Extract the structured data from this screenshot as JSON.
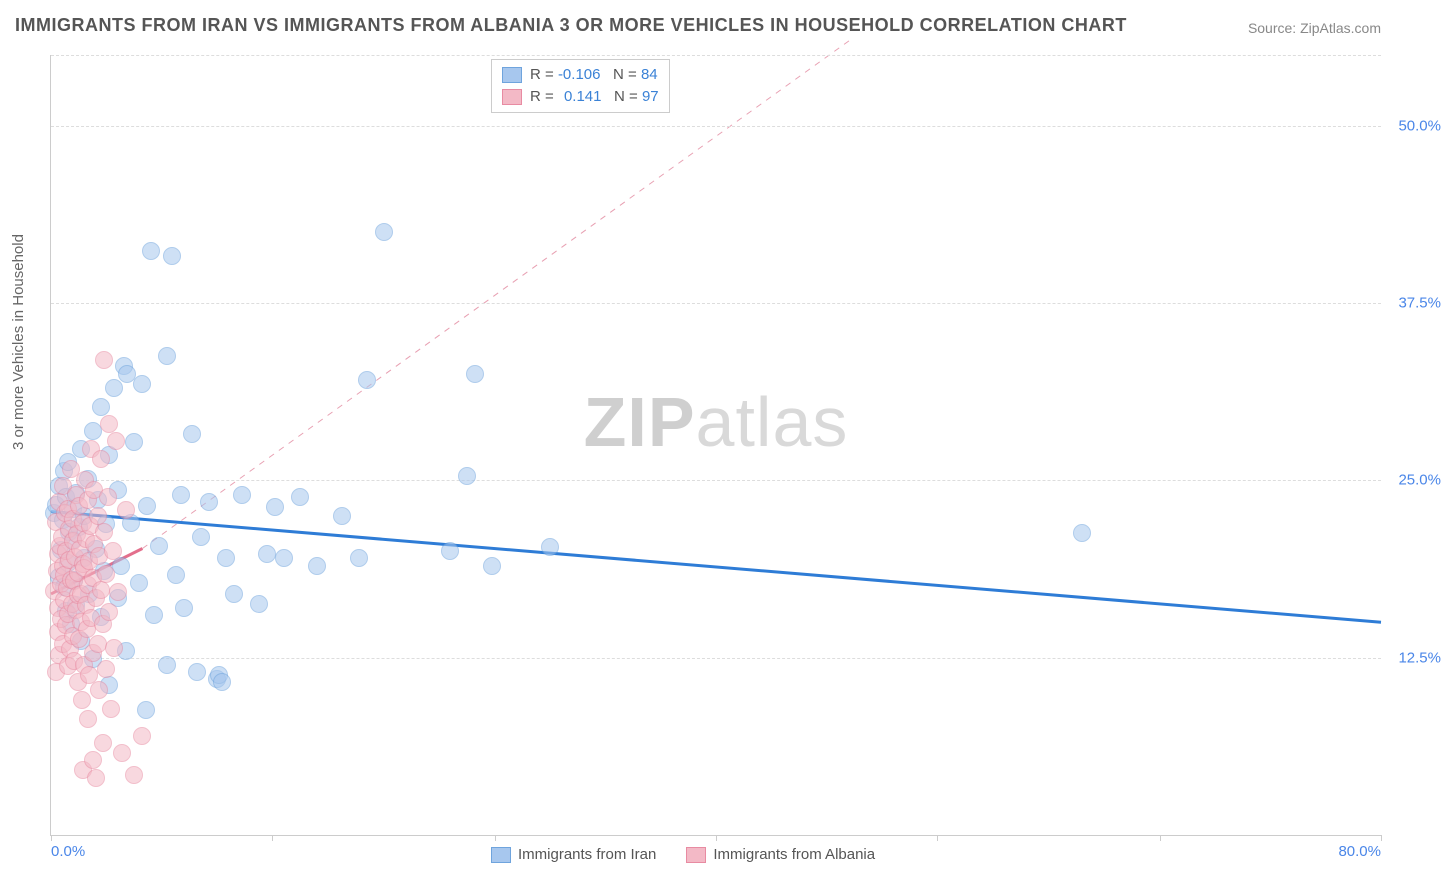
{
  "title": "IMMIGRANTS FROM IRAN VS IMMIGRANTS FROM ALBANIA 3 OR MORE VEHICLES IN HOUSEHOLD CORRELATION CHART",
  "source": "Source: ZipAtlas.com",
  "ylabel": "3 or more Vehicles in Household",
  "watermark_a": "ZIP",
  "watermark_b": "atlas",
  "chart": {
    "type": "scatter",
    "xlim": [
      0,
      80
    ],
    "ylim": [
      0,
      55
    ],
    "xtick_positions": [
      0,
      13.3,
      26.7,
      40,
      53.3,
      66.7,
      80
    ],
    "xtick_labels": [
      "0.0%",
      "",
      "",
      "",
      "",
      "",
      "80.0%"
    ],
    "ytick_positions": [
      12.5,
      25,
      37.5,
      50
    ],
    "ytick_labels": [
      "12.5%",
      "25.0%",
      "37.5%",
      "50.0%"
    ],
    "tick_color": "#4a86e8",
    "grid_color": "#dddddd",
    "background_color": "#ffffff",
    "point_radius": 8,
    "point_opacity": 0.55
  },
  "series": [
    {
      "name": "Immigrants from Iran",
      "color_fill": "#a7c7ee",
      "color_stroke": "#6fa4dd",
      "r_value": "-0.106",
      "n_value": "84",
      "trend": {
        "x1": 0,
        "y1": 22.8,
        "x2": 80,
        "y2": 15.0,
        "dashed": false,
        "width": 3,
        "color": "#2e7cd6"
      },
      "short_dashed_line": null,
      "points": [
        [
          0.2,
          22.7
        ],
        [
          0.3,
          23.3
        ],
        [
          0.5,
          18.2
        ],
        [
          0.5,
          24.6
        ],
        [
          0.6,
          20.1
        ],
        [
          0.7,
          22.2
        ],
        [
          0.8,
          25.7
        ],
        [
          0.8,
          17.5
        ],
        [
          0.9,
          23.8
        ],
        [
          0.9,
          15.8
        ],
        [
          1.0,
          19.2
        ],
        [
          1.0,
          26.3
        ],
        [
          1.1,
          21.4
        ],
        [
          1.2,
          14.9
        ],
        [
          1.3,
          20.8
        ],
        [
          1.3,
          23.0
        ],
        [
          1.4,
          18.0
        ],
        [
          1.5,
          24.1
        ],
        [
          1.5,
          16.2
        ],
        [
          1.7,
          21.7
        ],
        [
          1.8,
          27.2
        ],
        [
          1.8,
          13.7
        ],
        [
          2.0,
          19.5
        ],
        [
          2.0,
          22.5
        ],
        [
          2.2,
          25.1
        ],
        [
          2.3,
          17.0
        ],
        [
          2.5,
          12.4
        ],
        [
          2.5,
          28.5
        ],
        [
          2.7,
          20.2
        ],
        [
          2.8,
          23.6
        ],
        [
          3.0,
          15.4
        ],
        [
          3.0,
          30.2
        ],
        [
          3.2,
          18.6
        ],
        [
          3.3,
          21.9
        ],
        [
          3.5,
          26.8
        ],
        [
          3.5,
          10.6
        ],
        [
          3.8,
          31.5
        ],
        [
          4.0,
          16.7
        ],
        [
          4.0,
          24.3
        ],
        [
          4.2,
          19.0
        ],
        [
          4.4,
          33.1
        ],
        [
          4.5,
          13.0
        ],
        [
          4.6,
          32.5
        ],
        [
          4.8,
          22.0
        ],
        [
          5.0,
          27.7
        ],
        [
          5.3,
          17.8
        ],
        [
          5.5,
          31.8
        ],
        [
          5.7,
          8.8
        ],
        [
          5.8,
          23.2
        ],
        [
          6.0,
          41.2
        ],
        [
          6.2,
          15.5
        ],
        [
          6.5,
          20.4
        ],
        [
          7.0,
          12.0
        ],
        [
          7.0,
          33.8
        ],
        [
          7.3,
          40.8
        ],
        [
          7.5,
          18.3
        ],
        [
          7.8,
          24.0
        ],
        [
          8.0,
          16.0
        ],
        [
          8.5,
          28.3
        ],
        [
          8.8,
          11.5
        ],
        [
          9.0,
          21.0
        ],
        [
          9.5,
          23.5
        ],
        [
          10.0,
          11.0
        ],
        [
          10.1,
          11.3
        ],
        [
          10.3,
          10.8
        ],
        [
          10.5,
          19.5
        ],
        [
          11.0,
          17.0
        ],
        [
          11.5,
          24.0
        ],
        [
          12.5,
          16.3
        ],
        [
          13.0,
          19.8
        ],
        [
          13.5,
          23.1
        ],
        [
          14.0,
          19.5
        ],
        [
          15.0,
          23.8
        ],
        [
          16.0,
          19.0
        ],
        [
          17.5,
          22.5
        ],
        [
          18.5,
          19.5
        ],
        [
          19.0,
          32.1
        ],
        [
          20.0,
          42.5
        ],
        [
          24.0,
          20.0
        ],
        [
          25.0,
          25.3
        ],
        [
          25.5,
          32.5
        ],
        [
          26.5,
          19.0
        ],
        [
          30.0,
          20.3
        ],
        [
          62.0,
          21.3
        ]
      ]
    },
    {
      "name": "Immigrants from Albania",
      "color_fill": "#f3b9c6",
      "color_stroke": "#e88ba2",
      "r_value": "0.141",
      "n_value": "97",
      "trend": {
        "x1": 0,
        "y1": 17.0,
        "x2": 5.5,
        "y2": 20.2,
        "dashed": false,
        "width": 3,
        "color": "#e36f8c"
      },
      "short_dashed_line": {
        "x1": 5.5,
        "y1": 20.2,
        "x2": 48,
        "y2": 56,
        "color": "#e8a0b2",
        "width": 1
      },
      "points": [
        [
          0.2,
          17.2
        ],
        [
          0.3,
          11.5
        ],
        [
          0.3,
          22.1
        ],
        [
          0.35,
          18.6
        ],
        [
          0.4,
          14.3
        ],
        [
          0.4,
          19.8
        ],
        [
          0.45,
          16.0
        ],
        [
          0.5,
          23.5
        ],
        [
          0.5,
          12.7
        ],
        [
          0.55,
          20.4
        ],
        [
          0.6,
          17.7
        ],
        [
          0.6,
          15.2
        ],
        [
          0.65,
          21.0
        ],
        [
          0.7,
          19.0
        ],
        [
          0.7,
          13.5
        ],
        [
          0.75,
          24.6
        ],
        [
          0.8,
          16.6
        ],
        [
          0.8,
          18.3
        ],
        [
          0.85,
          22.7
        ],
        [
          0.9,
          14.8
        ],
        [
          0.9,
          20.0
        ],
        [
          0.95,
          17.4
        ],
        [
          1.0,
          11.9
        ],
        [
          1.0,
          23.0
        ],
        [
          1.05,
          15.6
        ],
        [
          1.1,
          19.4
        ],
        [
          1.1,
          21.6
        ],
        [
          1.15,
          13.1
        ],
        [
          1.2,
          18.0
        ],
        [
          1.2,
          25.8
        ],
        [
          1.25,
          16.3
        ],
        [
          1.3,
          20.7
        ],
        [
          1.3,
          14.0
        ],
        [
          1.35,
          22.3
        ],
        [
          1.4,
          17.9
        ],
        [
          1.4,
          12.3
        ],
        [
          1.45,
          19.6
        ],
        [
          1.5,
          15.9
        ],
        [
          1.5,
          24.0
        ],
        [
          1.55,
          21.2
        ],
        [
          1.6,
          18.5
        ],
        [
          1.6,
          10.8
        ],
        [
          1.65,
          16.9
        ],
        [
          1.7,
          23.2
        ],
        [
          1.7,
          13.8
        ],
        [
          1.75,
          20.2
        ],
        [
          1.8,
          17.0
        ],
        [
          1.8,
          15.0
        ],
        [
          1.85,
          9.5
        ],
        [
          1.9,
          22.0
        ],
        [
          1.9,
          19.1
        ],
        [
          1.95,
          4.6
        ],
        [
          2.0,
          18.8
        ],
        [
          2.0,
          12.0
        ],
        [
          2.05,
          25.0
        ],
        [
          2.1,
          16.2
        ],
        [
          2.1,
          20.9
        ],
        [
          2.15,
          14.5
        ],
        [
          2.2,
          23.6
        ],
        [
          2.2,
          17.6
        ],
        [
          2.25,
          8.2
        ],
        [
          2.3,
          19.3
        ],
        [
          2.3,
          11.3
        ],
        [
          2.35,
          21.8
        ],
        [
          2.4,
          15.3
        ],
        [
          2.4,
          27.2
        ],
        [
          2.5,
          5.3
        ],
        [
          2.5,
          18.1
        ],
        [
          2.55,
          12.8
        ],
        [
          2.6,
          24.3
        ],
        [
          2.6,
          20.5
        ],
        [
          2.7,
          16.7
        ],
        [
          2.7,
          4.0
        ],
        [
          2.8,
          22.5
        ],
        [
          2.8,
          13.5
        ],
        [
          2.9,
          19.7
        ],
        [
          2.9,
          10.2
        ],
        [
          3.0,
          17.3
        ],
        [
          3.0,
          26.5
        ],
        [
          3.1,
          14.9
        ],
        [
          3.1,
          6.5
        ],
        [
          3.2,
          21.4
        ],
        [
          3.2,
          33.5
        ],
        [
          3.3,
          18.4
        ],
        [
          3.3,
          11.7
        ],
        [
          3.4,
          23.8
        ],
        [
          3.5,
          15.7
        ],
        [
          3.5,
          29.0
        ],
        [
          3.6,
          8.9
        ],
        [
          3.7,
          20.0
        ],
        [
          3.8,
          13.2
        ],
        [
          3.9,
          27.8
        ],
        [
          4.0,
          17.1
        ],
        [
          4.3,
          5.8
        ],
        [
          4.5,
          22.9
        ],
        [
          5.0,
          4.2
        ],
        [
          5.5,
          7.0
        ]
      ]
    }
  ],
  "legend_labels": {
    "r": "R =",
    "n": "N ="
  },
  "series_legend_label_a": "Immigrants from Iran",
  "series_legend_label_b": "Immigrants from Albania"
}
